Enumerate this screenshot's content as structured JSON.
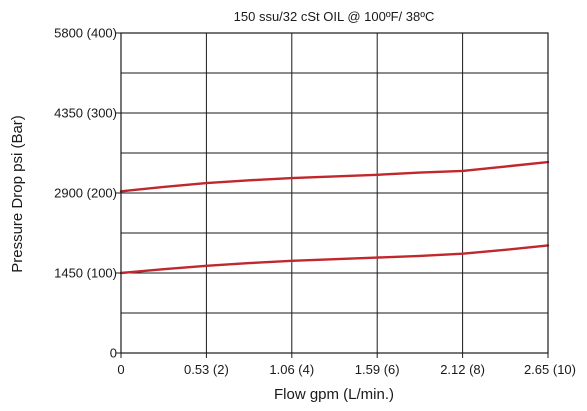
{
  "chart_data": {
    "type": "line",
    "title": "150 ssu/32 cSt OIL @ 100ºF/ 38ºC",
    "xlabel": "Flow gpm (L/min.)",
    "ylabel": "Pressure Drop psi (Bar)",
    "xlim": [
      0,
      2.65
    ],
    "ylim": [
      0,
      5800
    ],
    "x_ticks": [
      {
        "value": 0,
        "label": "0"
      },
      {
        "value": 0.53,
        "label": "0.53 (2)"
      },
      {
        "value": 1.06,
        "label": "1.06 (4)"
      },
      {
        "value": 1.59,
        "label": "1.59 (6)"
      },
      {
        "value": 2.12,
        "label": "2.12 (8)"
      },
      {
        "value": 2.65,
        "label": "2.65 (10)"
      }
    ],
    "y_ticks": [
      {
        "value": 0,
        "label": "0"
      },
      {
        "value": 1450,
        "label": "1450 (100)"
      },
      {
        "value": 2900,
        "label": "2900 (200)"
      },
      {
        "value": 4350,
        "label": "4350 (300)"
      },
      {
        "value": 5800,
        "label": "5800 (400)"
      }
    ],
    "y_minor_gridlines": [
      725,
      2175,
      3625,
      5075
    ],
    "grid": true,
    "line_color": "#c0282d",
    "series": [
      {
        "x": [
          0,
          0.265,
          0.53,
          0.795,
          1.06,
          1.325,
          1.59,
          1.855,
          2.12,
          2.385,
          2.65
        ],
        "y": [
          2930,
          3010,
          3080,
          3130,
          3170,
          3200,
          3230,
          3270,
          3300,
          3380,
          3460
        ]
      },
      {
        "x": [
          0,
          0.265,
          0.53,
          0.795,
          1.06,
          1.325,
          1.59,
          1.855,
          2.12,
          2.385,
          2.65
        ],
        "y": [
          1450,
          1520,
          1580,
          1630,
          1670,
          1700,
          1730,
          1760,
          1800,
          1870,
          1950
        ]
      }
    ]
  }
}
